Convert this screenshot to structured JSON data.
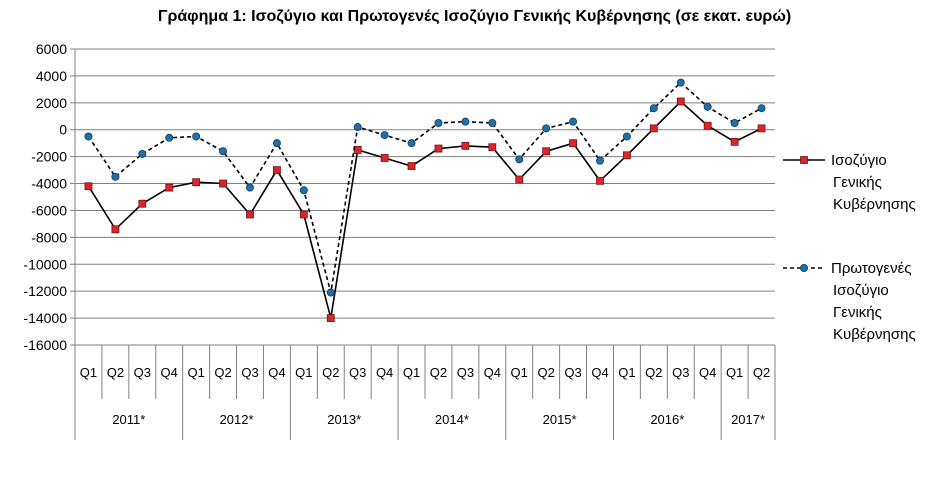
{
  "chart_data": {
    "type": "line",
    "title": "Γράφημα 1: Ισοζύγιο και Πρωτογενές Ισοζύγιο Γενικής Κυβέρνησης (σε εκατ. ευρώ)",
    "ylim": [
      -16000,
      6000
    ],
    "yticks": [
      6000,
      4000,
      2000,
      0,
      -2000,
      -4000,
      -6000,
      -8000,
      -10000,
      -12000,
      -14000,
      -16000
    ],
    "yticks_labels": [
      "6000",
      "4000",
      "2000",
      "0",
      "-2000",
      "-4000",
      "-6000",
      "-8000",
      "-10000",
      "-12000",
      "-14000",
      "-16000"
    ],
    "categories": [
      "Q1",
      "Q2",
      "Q3",
      "Q4",
      "Q1",
      "Q2",
      "Q3",
      "Q4",
      "Q1",
      "Q2",
      "Q3",
      "Q4",
      "Q1",
      "Q2",
      "Q3",
      "Q4",
      "Q1",
      "Q2",
      "Q3",
      "Q4",
      "Q1",
      "Q2",
      "Q3",
      "Q4",
      "Q1",
      "Q2"
    ],
    "year_groups": [
      {
        "label": "2011*",
        "span": 4
      },
      {
        "label": "2012*",
        "span": 4
      },
      {
        "label": "2013*",
        "span": 4
      },
      {
        "label": "2014*",
        "span": 4
      },
      {
        "label": "2015*",
        "span": 4
      },
      {
        "label": "2016*",
        "span": 4
      },
      {
        "label": "2017*",
        "span": 2
      }
    ],
    "grid": true,
    "legend_position": "right",
    "series": [
      {
        "name": "Ισοζύγιο Γενικής Κυβέρνησης",
        "legend_lines": [
          "Ισοζύγιο",
          "Γενικής",
          "Κυβέρνησης"
        ],
        "style": "solid",
        "marker": "square",
        "line_color": "#000000",
        "marker_color": "#d9262c",
        "values": [
          -4200,
          -7400,
          -5500,
          -4300,
          -3900,
          -4000,
          -6300,
          -3000,
          -6300,
          -14000,
          -1500,
          -2100,
          -2700,
          -1400,
          -1200,
          -1300,
          -3700,
          -1600,
          -1000,
          -3800,
          -1900,
          100,
          2100,
          300,
          -900,
          100
        ]
      },
      {
        "name": "Πρωτογενές Ισοζύγιο Γενικής Κυβέρνησης",
        "legend_lines": [
          "Πρωτογενές",
          "Ισοζύγιο",
          "Γενικής",
          "Κυβέρνησης"
        ],
        "style": "dashed",
        "marker": "circle",
        "line_color": "#000000",
        "marker_color": "#1f6fa8",
        "values": [
          -500,
          -3500,
          -1800,
          -600,
          -500,
          -1600,
          -4300,
          -1000,
          -4500,
          -12100,
          200,
          -400,
          -1000,
          500,
          600,
          500,
          -2200,
          100,
          600,
          -2300,
          -500,
          1600,
          3500,
          1700,
          500,
          1600
        ]
      }
    ]
  }
}
